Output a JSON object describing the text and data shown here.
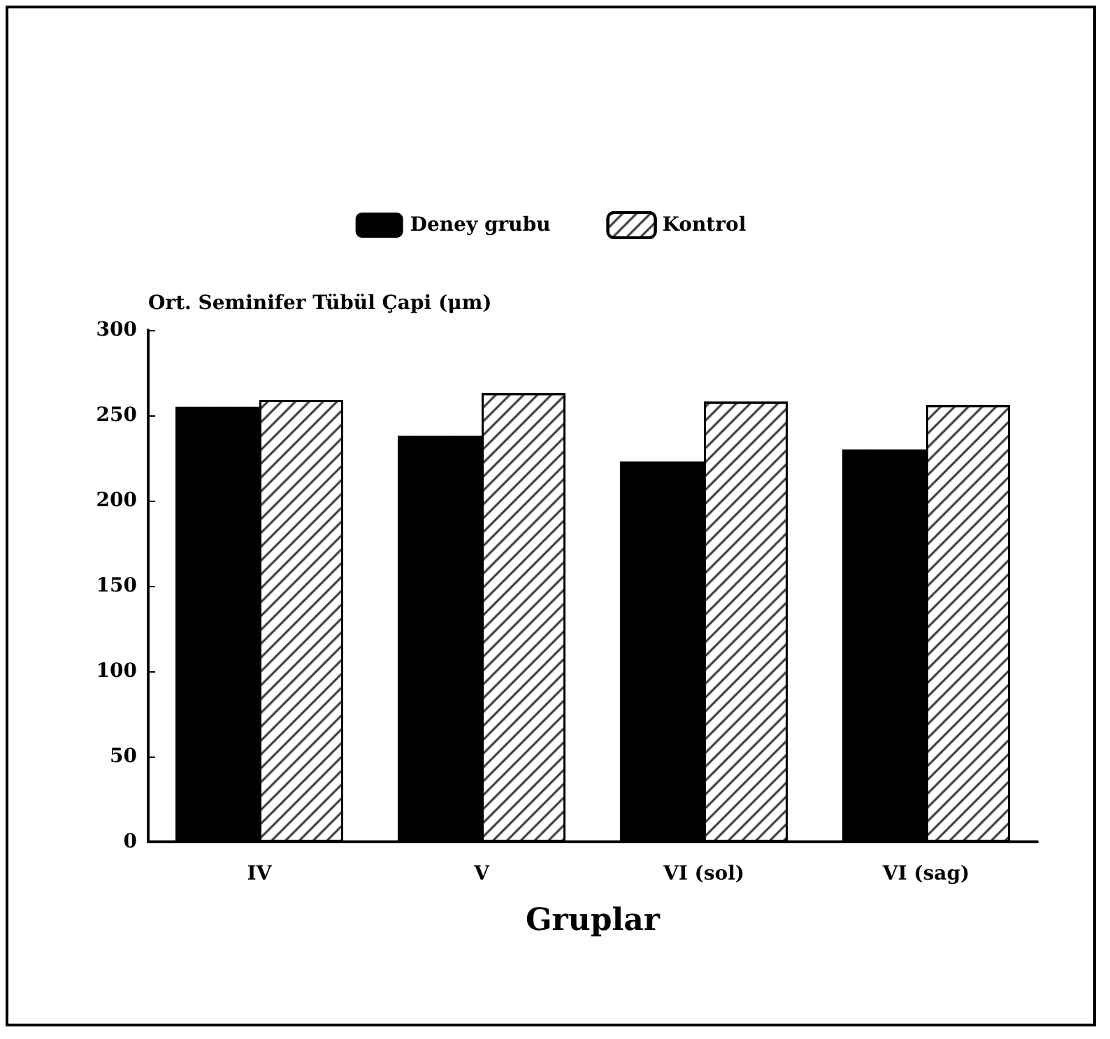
{
  "chart_data": {
    "type": "bar",
    "ylabel": "Ort. Seminifer Tübül Çapi (μm)",
    "xlabel": "Gruplar",
    "categories": [
      "IV",
      "V",
      "VI (sol)",
      "VI (sag)"
    ],
    "series": [
      {
        "name": "Deney grubu",
        "color": "#000000",
        "values": [
          255,
          238,
          223,
          230
        ]
      },
      {
        "name": "Kontrol",
        "color": "#ffffff",
        "values": [
          259,
          263,
          258,
          256
        ]
      }
    ],
    "ylim": [
      0,
      300
    ],
    "yticks": [
      0,
      50,
      100,
      150,
      200,
      250,
      300
    ],
    "grid": false,
    "legend": "top"
  }
}
